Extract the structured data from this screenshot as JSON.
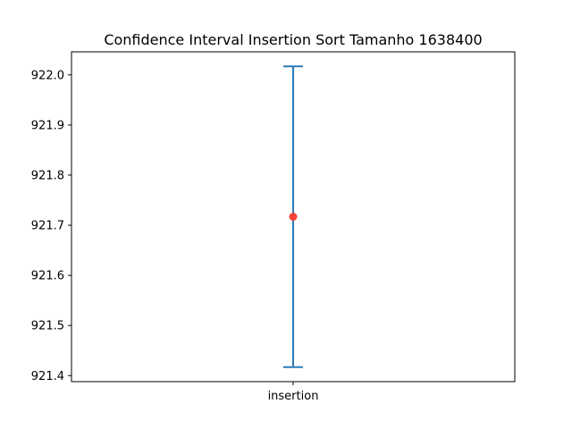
{
  "chart_data": {
    "type": "errorbar",
    "title": "Confidence Interval Insertion Sort Tamanho 1638400",
    "xlabel": "",
    "ylabel": "",
    "categories": [
      "insertion"
    ],
    "points": [
      {
        "category": "insertion",
        "mean": 921.717,
        "lower": 921.417,
        "upper": 922.017
      }
    ],
    "yticks": [
      "921.4",
      "921.5",
      "921.6",
      "921.7",
      "921.8",
      "921.9",
      "922.0"
    ],
    "ylim": [
      921.388,
      922.046
    ],
    "grid": false,
    "legend": false,
    "colors": {
      "errorbar": "#2b7bb9",
      "marker": "#f44336",
      "axes": "#000000"
    }
  }
}
